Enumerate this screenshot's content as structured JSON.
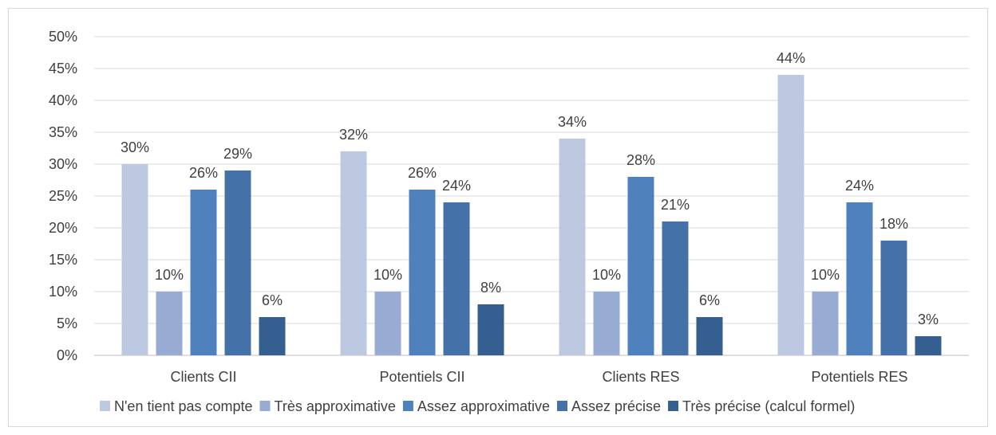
{
  "chart_data": {
    "type": "bar",
    "categories": [
      "Clients CII",
      "Potentiels CII",
      "Clients RES",
      "Potentiels RES"
    ],
    "series": [
      {
        "name": "N'en tient pas compte",
        "color": "#bdc9e1",
        "values": [
          30,
          32,
          34,
          44
        ],
        "labels": [
          "30%",
          "32%",
          "34%",
          "44%"
        ]
      },
      {
        "name": "Très approximative",
        "color": "#98abd3",
        "values": [
          10,
          10,
          10,
          10
        ],
        "labels": [
          "10%",
          "10%",
          "10%",
          "10%"
        ]
      },
      {
        "name": "Assez approximative",
        "color": "#4f81bd",
        "values": [
          26,
          26,
          28,
          24
        ],
        "labels": [
          "26%",
          "26%",
          "28%",
          "24%"
        ]
      },
      {
        "name": "Assez précise",
        "color": "#4472a8",
        "values": [
          29,
          24,
          21,
          18
        ],
        "labels": [
          "29%",
          "24%",
          "21%",
          "18%"
        ]
      },
      {
        "name": "Très précise (calcul formel)",
        "color": "#365f91",
        "values": [
          6,
          8,
          6,
          3
        ],
        "labels": [
          "6%",
          "8%",
          "6%",
          "3%"
        ]
      }
    ],
    "y_ticks": [
      "0%",
      "5%",
      "10%",
      "15%",
      "20%",
      "25%",
      "30%",
      "35%",
      "40%",
      "45%",
      "50%"
    ],
    "ylim": [
      0,
      50
    ],
    "grid": true,
    "legend_position": "bottom"
  }
}
